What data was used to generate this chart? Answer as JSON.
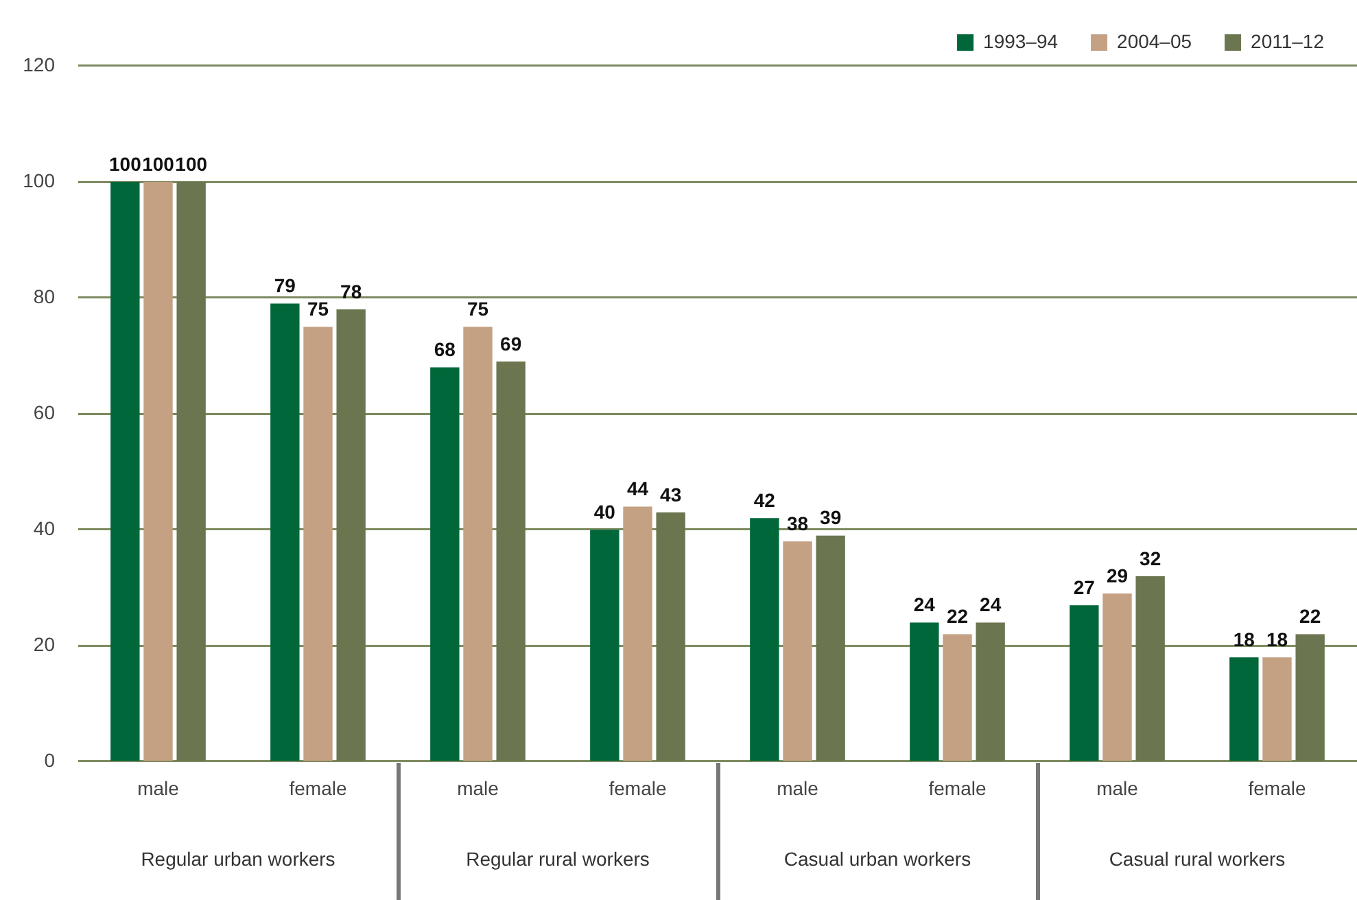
{
  "chart_data": {
    "type": "bar",
    "categories": [
      "male",
      "female",
      "male",
      "female",
      "male",
      "female",
      "male",
      "female"
    ],
    "annotations": [
      "Regular urban workers",
      "Regular rural workers",
      "Casual urban workers",
      "Casual rural workers"
    ],
    "series": [
      {
        "name": "1993–94",
        "color": "#00673a",
        "values": [
          100,
          79,
          68,
          40,
          42,
          24,
          27,
          18
        ]
      },
      {
        "name": "2004–05",
        "color": "#c4a183",
        "values": [
          100,
          75,
          75,
          44,
          38,
          22,
          29,
          18
        ]
      },
      {
        "name": "2011–12",
        "color": "#6b7650",
        "values": [
          100,
          78,
          69,
          43,
          39,
          24,
          32,
          22
        ]
      }
    ],
    "ylim": [
      0,
      120
    ],
    "yticks": [
      0,
      20,
      40,
      60,
      80,
      100,
      120
    ],
    "grid": "y",
    "legend": "top right",
    "data_labels": true
  }
}
